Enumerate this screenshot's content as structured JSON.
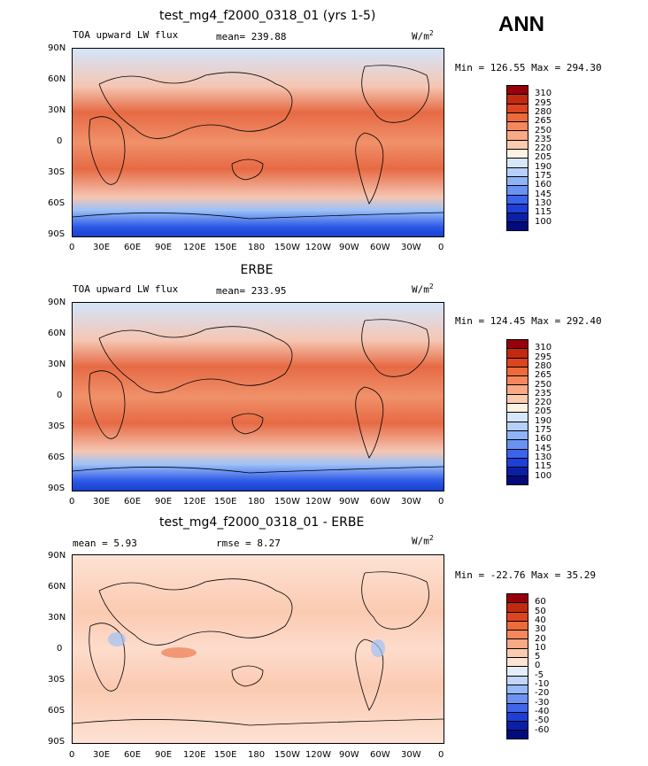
{
  "season": "ANN",
  "units": "W/m2",
  "panels": [
    {
      "title": "test_mg4_f2000_0318_01 (yrs 1-5)",
      "left_label": "TOA upward LW flux",
      "center_label": "mean= 239.88",
      "units_base": "W/m",
      "units_sup": "2",
      "minmax": "Min = 126.55 Max = 294.30",
      "colorbar": [
        "310",
        "295",
        "280",
        "265",
        "250",
        "235",
        "220",
        "205",
        "190",
        "175",
        "160",
        "145",
        "130",
        "115",
        "100"
      ]
    },
    {
      "title": "ERBE",
      "left_label": "TOA upward LW flux",
      "center_label": "mean= 233.95",
      "units_base": "W/m",
      "units_sup": "2",
      "minmax": "Min = 124.45 Max = 292.40",
      "colorbar": [
        "310",
        "295",
        "280",
        "265",
        "250",
        "235",
        "220",
        "205",
        "190",
        "175",
        "160",
        "145",
        "130",
        "115",
        "100"
      ]
    },
    {
      "title": "test_mg4_f2000_0318_01 - ERBE",
      "left_label": "mean =    5.93",
      "center_label": "rmse =    8.27",
      "units_base": "W/m",
      "units_sup": "2",
      "minmax": "Min = -22.76 Max =  35.29",
      "colorbar": [
        "60",
        "50",
        "40",
        "30",
        "20",
        "10",
        "5",
        "0",
        "-5",
        "-10",
        "-20",
        "-30",
        "-40",
        "-50",
        "-60"
      ]
    }
  ],
  "lat_ticks": [
    "90N",
    "60N",
    "30N",
    "0",
    "30S",
    "60S",
    "90S"
  ],
  "lon_ticks": [
    "0",
    "30E",
    "60E",
    "90E",
    "120E",
    "150E",
    "180",
    "150W",
    "120W",
    "90W",
    "60W",
    "30W",
    "0"
  ],
  "abs_colors": [
    "#96000c",
    "#c22a10",
    "#dd4420",
    "#ed6a3a",
    "#f5875d",
    "#f9a985",
    "#fbcbb0",
    "#fff2e2",
    "#d6e6fb",
    "#b6d0fb",
    "#8fb3f8",
    "#6a92f2",
    "#3c64ea",
    "#1e3ed8",
    "#0a1fa6",
    "#020a7e"
  ],
  "diff_colors": [
    "#96000c",
    "#c22a10",
    "#dd4420",
    "#ed6a3a",
    "#f5875d",
    "#f9a985",
    "#fbcbb0",
    "#fde4d5",
    "#e3edfc",
    "#c1d6fb",
    "#98b9f8",
    "#6c92f2",
    "#3f66ea",
    "#1e3ed8",
    "#0a1fa6",
    "#020a7e"
  ]
}
